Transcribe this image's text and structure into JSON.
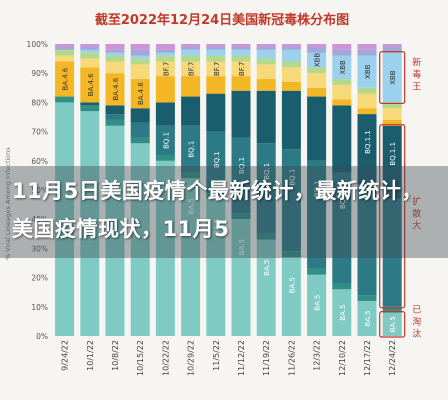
{
  "chart_data": {
    "type": "bar",
    "stacked": true,
    "title": "截至2022年12月24日美国新冠毒株分布图",
    "ylabel": "% Viral Lineages Among Infections",
    "ylim": [
      0,
      100
    ],
    "yticks": [
      "0%",
      "10%",
      "20%",
      "30%",
      "40%",
      "50%",
      "60%",
      "70%",
      "80%",
      "90%",
      "100%"
    ],
    "grid": false,
    "categories": [
      "9/24/22",
      "10/1/22",
      "10/8/22",
      "10/15/22",
      "10/22/22",
      "10/29/22",
      "11/5/22",
      "11/12/22",
      "11/19/22",
      "11/26/22",
      "12/3/22",
      "12/10/22",
      "12/17/22",
      "12/24/22"
    ],
    "series": [
      {
        "name": "BA.5",
        "color": "#7fcac3",
        "values": [
          80,
          77,
          72,
          66,
          60,
          54,
          47,
          40,
          33,
          27,
          21,
          16,
          12,
          8
        ]
      },
      {
        "name": "",
        "color": "#2f8f86",
        "values": [
          2,
          2,
          2,
          2,
          2,
          2,
          2,
          2,
          2,
          2,
          2,
          2,
          2,
          2
        ]
      },
      {
        "name": "BQ.1",
        "color": "#2b7a86",
        "values": [
          0,
          0,
          2,
          5,
          10,
          16,
          21,
          26,
          31,
          35,
          37,
          38,
          38,
          37
        ]
      },
      {
        "name": "BQ.1.1",
        "color": "#1a5e6e",
        "values": [
          0,
          1,
          3,
          5,
          8,
          10,
          13,
          16,
          18,
          20,
          22,
          23,
          24,
          25
        ]
      },
      {
        "name": "BA.4.6",
        "color": "#f3b625",
        "values": [
          12,
          12,
          11,
          10,
          9,
          7,
          6,
          5,
          4,
          3,
          3,
          2,
          2,
          2
        ]
      },
      {
        "name": "BF.7",
        "color": "#f8d97a",
        "values": [
          2,
          3,
          4,
          5,
          5,
          5,
          5,
          5,
          5,
          5,
          5,
          5,
          5,
          4
        ]
      },
      {
        "name": "",
        "color": "#b4d98a",
        "values": [
          2,
          2,
          2,
          2,
          2,
          2,
          2,
          2,
          2,
          2,
          2,
          2,
          2,
          2
        ]
      },
      {
        "name": "XBB",
        "color": "#9bd1ec",
        "values": [
          0,
          1,
          1,
          1,
          1,
          2,
          2,
          2,
          3,
          4,
          5,
          8,
          11,
          17
        ]
      },
      {
        "name": "",
        "color": "#9fa8da",
        "values": [
          1,
          1,
          1,
          2,
          1,
          1,
          1,
          1,
          1,
          1,
          2,
          2,
          2,
          2
        ]
      },
      {
        "name": "",
        "color": "#ce93d8",
        "values": [
          1,
          1,
          2,
          2,
          2,
          1,
          1,
          1,
          1,
          1,
          1,
          2,
          2,
          1
        ]
      }
    ],
    "bar_labels": [
      {
        "series": 0,
        "text": "BA.5",
        "from_index": 5
      },
      {
        "series": 2,
        "text": "BQ.1",
        "from_index": 4,
        "to_index": 11
      },
      {
        "series": 3,
        "text": "BQ.1.1",
        "from_index": 12
      },
      {
        "series": 4,
        "text": "BA.4.6",
        "to_index": 3
      },
      {
        "series": 5,
        "text": "BF.7",
        "from_index": 4,
        "to_index": 7
      },
      {
        "series": 7,
        "text": "XBB",
        "from_index": 10
      }
    ],
    "annotations": [
      {
        "text": "新毒王",
        "series": [
          7
        ],
        "index": 13,
        "color": "#c0392b"
      },
      {
        "text": "扩散大",
        "series": [
          2,
          3
        ],
        "index": 13,
        "color": "#c0392b"
      },
      {
        "text": "已淘汰",
        "series": [
          0
        ],
        "index": 13,
        "color": "#c0392b"
      }
    ]
  },
  "overlay": {
    "headline": "11月5日美国疫情个最新统计，最新统计，美国疫情现状，11月5"
  }
}
